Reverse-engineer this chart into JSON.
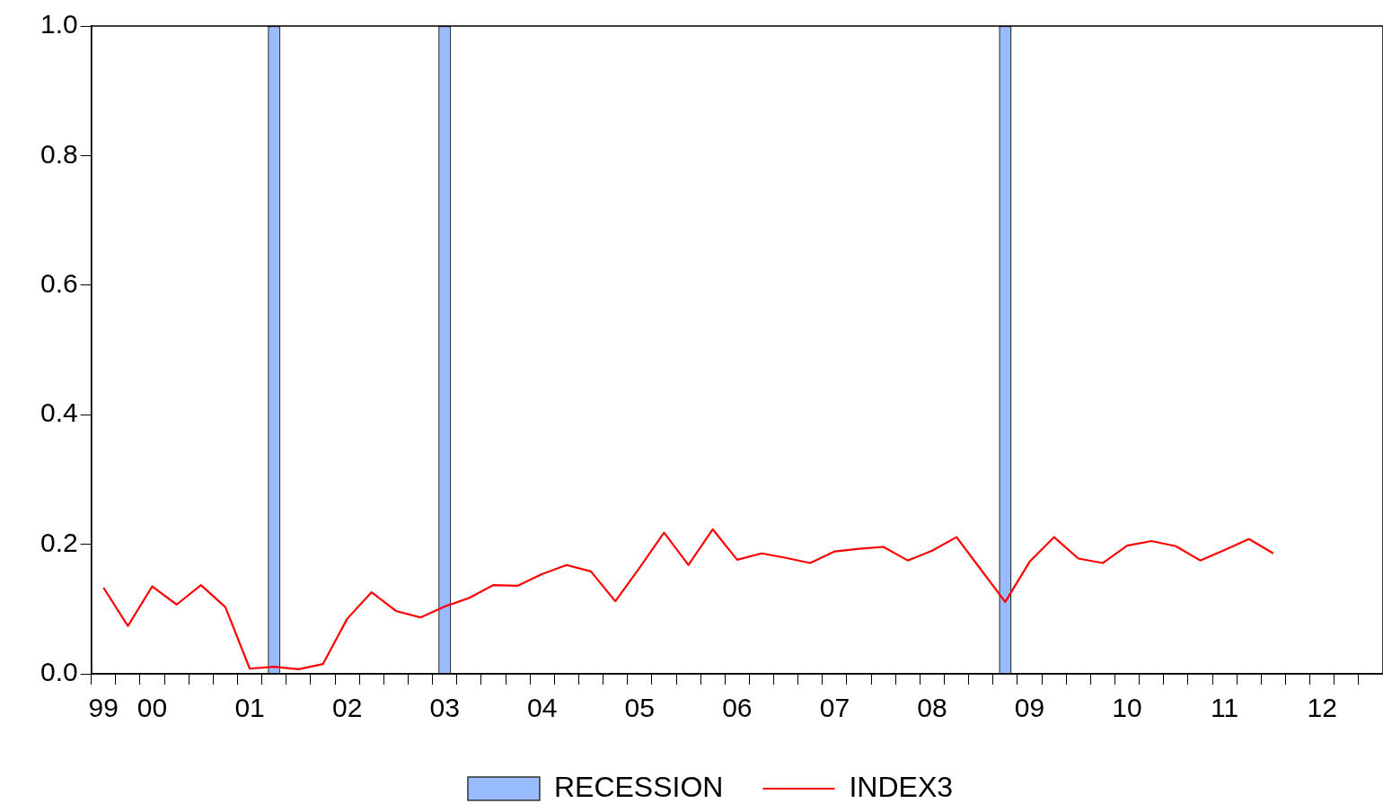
{
  "chart_data": {
    "type": "line",
    "categories": [
      "99",
      null,
      "00",
      null,
      null,
      null,
      "01",
      null,
      null,
      null,
      "02",
      null,
      null,
      null,
      "03",
      null,
      null,
      null,
      "04",
      null,
      null,
      null,
      "05",
      null,
      null,
      null,
      "06",
      null,
      null,
      null,
      "07",
      null,
      null,
      null,
      "08",
      null,
      null,
      null,
      "09",
      null,
      null,
      null,
      "10",
      null,
      null,
      null,
      "11",
      null,
      null,
      null,
      "12",
      null,
      null
    ],
    "series": [
      {
        "name": "RECESSION",
        "type": "bar",
        "color": "#99bbff",
        "values": [
          0,
          0,
          0,
          0,
          0,
          0,
          0,
          1,
          0,
          0,
          0,
          0,
          0,
          0,
          1,
          0,
          0,
          0,
          0,
          0,
          0,
          0,
          0,
          0,
          0,
          0,
          0,
          0,
          0,
          0,
          0,
          0,
          0,
          0,
          0,
          0,
          0,
          1,
          0,
          0,
          0,
          0,
          0,
          0,
          0,
          0,
          0,
          0,
          0,
          null,
          null,
          null,
          null
        ]
      },
      {
        "name": "INDEX3",
        "color": "#ff0000",
        "values": [
          0.133,
          0.074,
          0.135,
          0.107,
          0.137,
          0.103,
          0.008,
          0.011,
          0.007,
          0.015,
          0.085,
          0.126,
          0.097,
          0.087,
          0.104,
          0.117,
          0.137,
          0.136,
          0.154,
          0.168,
          0.158,
          0.112,
          0.164,
          0.218,
          0.168,
          0.223,
          0.176,
          0.186,
          0.179,
          0.171,
          0.189,
          0.193,
          0.196,
          0.175,
          0.19,
          0.211,
          0.161,
          0.111,
          0.173,
          0.211,
          0.178,
          0.171,
          0.198,
          0.205,
          0.197,
          0.175,
          0.191,
          0.208,
          0.186,
          null,
          null,
          null,
          null
        ]
      }
    ],
    "ylim": [
      0,
      1
    ],
    "yticks": [
      {
        "value": 0,
        "label": "0.0"
      },
      {
        "value": 0.2,
        "label": "0.2"
      },
      {
        "value": 0.4,
        "label": "0.4"
      },
      {
        "value": 0.6,
        "label": "0.6"
      },
      {
        "value": 0.8,
        "label": "0.8"
      },
      {
        "value": 1,
        "label": "1.0"
      }
    ],
    "grid": false,
    "legend": "bottom",
    "line_style": "solid",
    "marker": "none"
  }
}
